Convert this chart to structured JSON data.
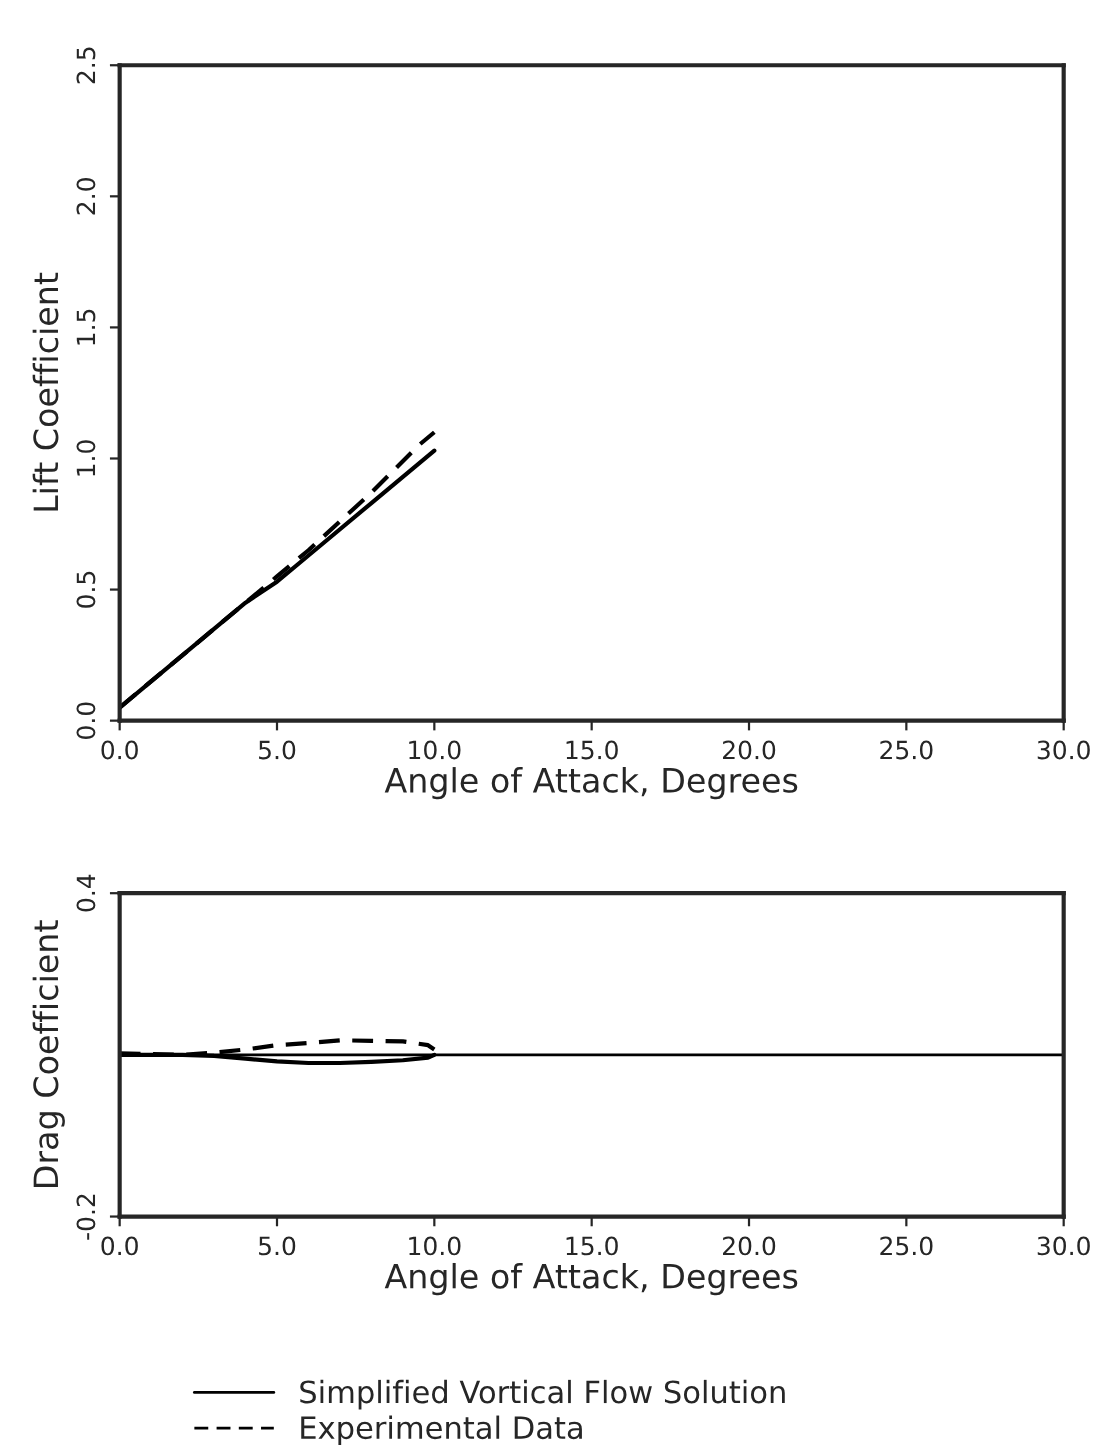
{
  "chart_data": [
    {
      "type": "line",
      "xlabel": "Angle of Attack, Degrees",
      "ylabel": "Lift Coefficient",
      "xlim": [
        0,
        30
      ],
      "xticks": [
        {
          "value": 0,
          "label": "0.0"
        },
        {
          "value": 5,
          "label": "5.0"
        },
        {
          "value": 10,
          "label": "10.0"
        },
        {
          "value": 15,
          "label": "15.0"
        },
        {
          "value": 20,
          "label": "20.0"
        },
        {
          "value": 25,
          "label": "25.0"
        },
        {
          "value": 30,
          "label": "30.0"
        }
      ],
      "ylim": [
        0,
        2.5
      ],
      "yticks": [
        {
          "value": 0,
          "label": "0.0"
        },
        {
          "value": 0.5,
          "label": "0.5"
        },
        {
          "value": 1,
          "label": "1.0"
        },
        {
          "value": 1.5,
          "label": "1.5"
        },
        {
          "value": 2,
          "label": "2.0"
        },
        {
          "value": 2.5,
          "label": "2.5"
        }
      ],
      "grid": false,
      "legend": false,
      "marker": "none",
      "series": [
        {
          "color": "#000000",
          "line_style": "solid",
          "x": [
            0,
            2,
            4,
            5,
            6,
            8,
            10
          ],
          "values": [
            0.05,
            0.25,
            0.45,
            0.53,
            0.63,
            0.83,
            1.03
          ]
        },
        {
          "color": "#000000",
          "line_style": "dashed",
          "x": [
            0,
            4,
            5,
            6,
            8,
            9.5,
            10
          ],
          "values": [
            0.05,
            0.45,
            0.55,
            0.65,
            0.87,
            1.05,
            1.1
          ]
        }
      ]
    },
    {
      "type": "line",
      "xlabel": "Angle of Attack, Degrees",
      "ylabel": "Drag Coefficient",
      "xlim": [
        0,
        30
      ],
      "xticks": [
        {
          "value": 0,
          "label": "0.0"
        },
        {
          "value": 5,
          "label": "5.0"
        },
        {
          "value": 10,
          "label": "10.0"
        },
        {
          "value": 15,
          "label": "15.0"
        },
        {
          "value": 20,
          "label": "20.0"
        },
        {
          "value": 25,
          "label": "25.0"
        },
        {
          "value": 30,
          "label": "30.0"
        }
      ],
      "ylim": [
        -0.2,
        0.4
      ],
      "yticks": [
        -0.2,
        0.4
      ],
      "grid": false,
      "legend": "bottom",
      "marker": "none",
      "ref_lines": [
        {
          "axis": "y",
          "value": 0.1,
          "color": "#000000"
        }
      ],
      "series": [
        {
          "name": "Simplified Vortical Flow Solution",
          "color": "#000000",
          "line_style": "solid",
          "x": [
            0,
            2,
            3,
            4,
            5,
            6,
            7,
            8,
            9,
            9.8,
            10
          ],
          "values": [
            0.1,
            0.1,
            0.098,
            0.093,
            0.088,
            0.085,
            0.085,
            0.087,
            0.09,
            0.095,
            0.1
          ]
        },
        {
          "name": "Experimental Data",
          "color": "#000000",
          "line_style": "dashed",
          "x": [
            0,
            2,
            3,
            4,
            5,
            6,
            7,
            8,
            9,
            9.8,
            10
          ],
          "values": [
            0.103,
            0.1,
            0.104,
            0.11,
            0.118,
            0.122,
            0.127,
            0.126,
            0.125,
            0.118,
            0.11
          ]
        }
      ]
    }
  ]
}
